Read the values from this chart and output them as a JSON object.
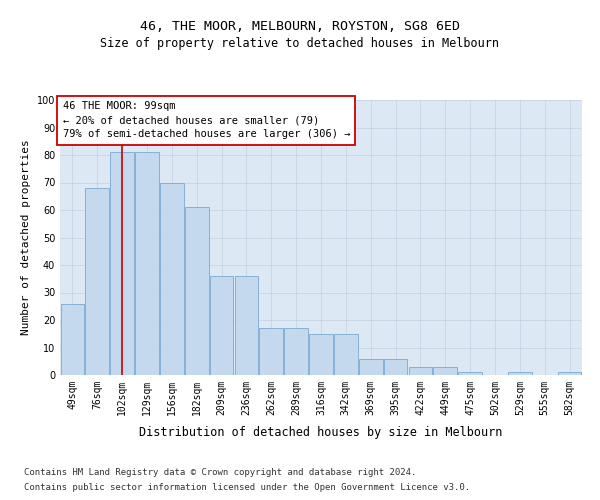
{
  "title": "46, THE MOOR, MELBOURN, ROYSTON, SG8 6ED",
  "subtitle": "Size of property relative to detached houses in Melbourn",
  "xlabel": "Distribution of detached houses by size in Melbourn",
  "ylabel": "Number of detached properties",
  "categories": [
    "49sqm",
    "76sqm",
    "102sqm",
    "129sqm",
    "156sqm",
    "182sqm",
    "209sqm",
    "236sqm",
    "262sqm",
    "289sqm",
    "316sqm",
    "342sqm",
    "369sqm",
    "395sqm",
    "422sqm",
    "449sqm",
    "475sqm",
    "502sqm",
    "529sqm",
    "555sqm",
    "582sqm"
  ],
  "values": [
    26,
    68,
    81,
    81,
    70,
    61,
    36,
    36,
    17,
    17,
    15,
    15,
    6,
    6,
    3,
    3,
    1,
    0,
    1,
    0,
    1
  ],
  "bar_color": "#c5d9ee",
  "bar_edge_color": "#7aaad0",
  "vline_pos": 2.0,
  "vline_color": "#cc0000",
  "annotation_line1": "46 THE MOOR: 99sqm",
  "annotation_line2": "← 20% of detached houses are smaller (79)",
  "annotation_line3": "79% of semi-detached houses are larger (306) →",
  "ylim_max": 100,
  "yticks": [
    0,
    10,
    20,
    30,
    40,
    50,
    60,
    70,
    80,
    90,
    100
  ],
  "grid_color": "#c8d4e4",
  "bg_color": "#dce8f4",
  "footer1": "Contains HM Land Registry data © Crown copyright and database right 2024.",
  "footer2": "Contains public sector information licensed under the Open Government Licence v3.0.",
  "title_fontsize": 9.5,
  "subtitle_fontsize": 8.5,
  "ylabel_fontsize": 8,
  "xlabel_fontsize": 8.5,
  "tick_fontsize": 7,
  "annot_fontsize": 7.5,
  "footer_fontsize": 6.5
}
